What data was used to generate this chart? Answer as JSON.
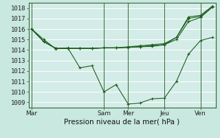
{
  "title": "",
  "xlabel": "Pression niveau de la mer( hPa )",
  "ylabel": "",
  "bg_color": "#c8e8e0",
  "plot_bg_color": "#d4ece8",
  "grid_color": "#b0d8d0",
  "line_color": "#1a5c1a",
  "marker_color": "#1a5c1a",
  "ylim": [
    1008.5,
    1018.5
  ],
  "yticks": [
    1009,
    1010,
    1011,
    1012,
    1013,
    1014,
    1015,
    1016,
    1017,
    1018
  ],
  "day_labels": [
    "Mar",
    "Sam",
    "Mer",
    "Jeu",
    "Ven"
  ],
  "day_positions": [
    0,
    12,
    16,
    22,
    28
  ],
  "xlim": [
    -0.5,
    30.5
  ],
  "series": [
    {
      "x": [
        0,
        2,
        4,
        6,
        8,
        10,
        12,
        14,
        16,
        18,
        20,
        22,
        24,
        26,
        28,
        30
      ],
      "y": [
        1016.0,
        1015.0,
        1014.1,
        1014.2,
        1012.3,
        1012.5,
        1010.0,
        1010.7,
        1008.85,
        1008.95,
        1009.35,
        1009.4,
        1011.0,
        1013.6,
        1014.9,
        1015.2
      ]
    },
    {
      "x": [
        0,
        2,
        4,
        6,
        8,
        10,
        12,
        14,
        16,
        18,
        20,
        22,
        24,
        26,
        28,
        30
      ],
      "y": [
        1016.0,
        1014.8,
        1014.15,
        1014.15,
        1014.15,
        1014.15,
        1014.2,
        1014.2,
        1014.25,
        1014.3,
        1014.35,
        1014.5,
        1015.0,
        1016.7,
        1017.1,
        1018.1
      ]
    },
    {
      "x": [
        0,
        2,
        4,
        6,
        8,
        10,
        12,
        14,
        16,
        18,
        20,
        22,
        24,
        26,
        28,
        30
      ],
      "y": [
        1016.0,
        1014.8,
        1014.15,
        1014.15,
        1014.15,
        1014.15,
        1014.2,
        1014.2,
        1014.3,
        1014.4,
        1014.5,
        1014.6,
        1015.2,
        1017.0,
        1017.2,
        1018.1
      ]
    },
    {
      "x": [
        0,
        2,
        4,
        6,
        8,
        10,
        12,
        14,
        16,
        18,
        20,
        22,
        24,
        26,
        28,
        30
      ],
      "y": [
        1016.0,
        1014.8,
        1014.15,
        1014.15,
        1014.15,
        1014.15,
        1014.2,
        1014.2,
        1014.25,
        1014.3,
        1014.4,
        1014.5,
        1015.2,
        1017.15,
        1017.3,
        1018.2
      ]
    }
  ]
}
